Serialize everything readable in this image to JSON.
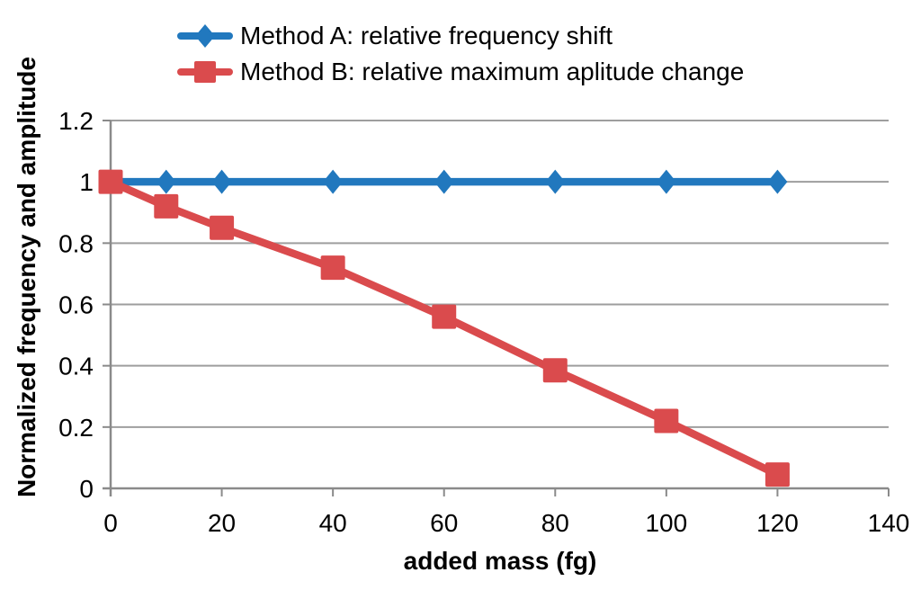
{
  "chart_data": {
    "type": "line",
    "title": "",
    "xlabel": "added mass (fg)",
    "ylabel": "Normalized frequency and amplitude",
    "xlim": [
      0,
      140
    ],
    "ylim": [
      0,
      1.2
    ],
    "xticks": [
      0,
      20,
      40,
      60,
      80,
      100,
      120,
      140
    ],
    "yticks": [
      0,
      0.2,
      0.4,
      0.6,
      0.8,
      1,
      1.2
    ],
    "grid": "horizontal-only",
    "legend_position": "top-left",
    "x": [
      0,
      10,
      20,
      40,
      60,
      80,
      100,
      120
    ],
    "series": [
      {
        "name": "Method A: relative frequency shift",
        "marker": "diamond",
        "color": "#2178BE",
        "values": [
          1,
          1,
          1,
          1,
          1,
          1,
          1,
          1
        ]
      },
      {
        "name": "Method B: relative maximum aplitude change",
        "marker": "square",
        "color": "#DA4B4D",
        "values": [
          1,
          0.92,
          0.85,
          0.72,
          0.56,
          0.385,
          0.22,
          0.045
        ]
      }
    ],
    "axis_color": "#8A8A8A",
    "gridline_color": "#9E9E9E",
    "text_color": "#000000"
  }
}
